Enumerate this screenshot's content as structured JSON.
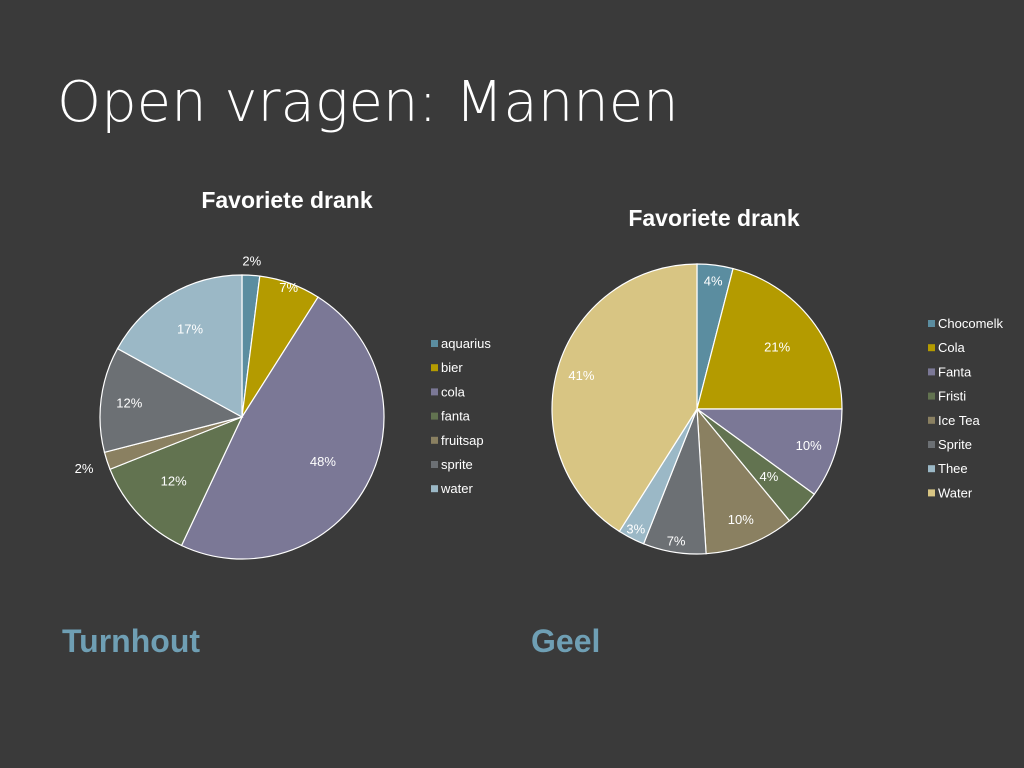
{
  "slide": {
    "title": "Open vragen: Mannen",
    "background": "#3a3a3a",
    "text_color": "#ffffff",
    "caption_color": "#6f9fb4"
  },
  "captions": {
    "left": "Turnhout",
    "right": "Geel"
  },
  "chart_data": [
    {
      "type": "pie",
      "title": "Favoriete drank",
      "legend_position": "right",
      "label_format": "percent",
      "categories": [
        "aquarius",
        "bier",
        "cola",
        "fanta",
        "fruitsap",
        "sprite",
        "water"
      ],
      "values": [
        2,
        7,
        48,
        12,
        2,
        12,
        17
      ],
      "labels": [
        "2%",
        "7%",
        "48%",
        "12%",
        "2%",
        "12%",
        "17%"
      ],
      "colors": [
        "#5b8da0",
        "#b49b00",
        "#7b7896",
        "#627350",
        "#8a8061",
        "#6c7074",
        "#9bb8c6"
      ]
    },
    {
      "type": "pie",
      "title": "Favoriete drank",
      "legend_position": "right",
      "label_format": "percent",
      "categories": [
        "Chocomelk",
        "Cola",
        "Fanta",
        "Fristi",
        "Ice Tea",
        "Sprite",
        "Thee",
        "Water"
      ],
      "values": [
        4,
        21,
        10,
        4,
        10,
        7,
        3,
        41
      ],
      "labels": [
        "4%",
        "21%",
        "10%",
        "4%",
        "10%",
        "7%",
        "3%",
        "41%"
      ],
      "colors": [
        "#5b8da0",
        "#b49b00",
        "#7b7896",
        "#627350",
        "#8a8061",
        "#6c7074",
        "#9bb8c6",
        "#d8c583"
      ]
    }
  ]
}
